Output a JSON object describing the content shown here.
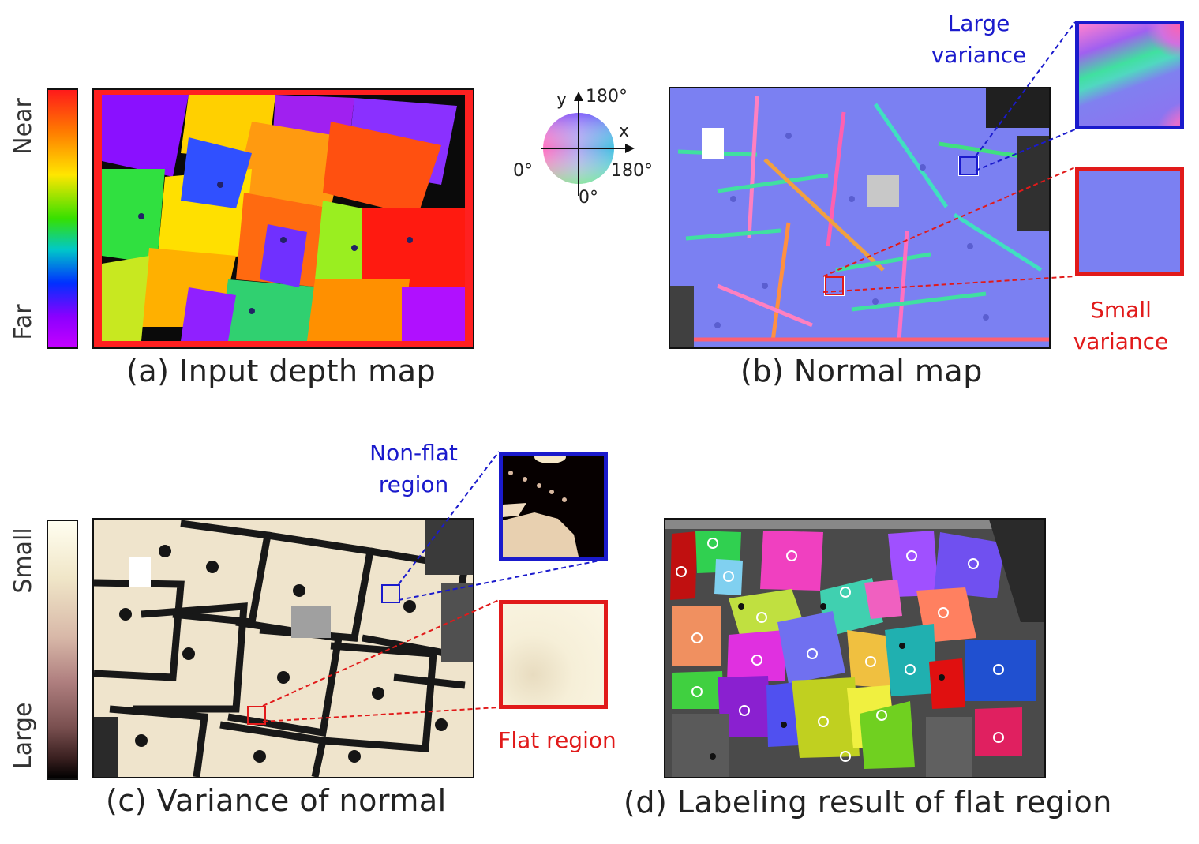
{
  "panels": {
    "a": {
      "caption": "(a) Input depth map",
      "colorbar_top": "Near",
      "colorbar_bottom": "Far"
    },
    "b": {
      "caption": "(b) Normal map",
      "axis_y": "y",
      "axis_x": "x",
      "angle_top": "180°",
      "angle_left": "0°",
      "angle_right": "180°",
      "angle_bottom": "0°",
      "zoom_high_label_1": "Large",
      "zoom_high_label_2": "variance",
      "zoom_low_label_1": "Small",
      "zoom_low_label_2": "variance",
      "color_high": "#1a1acc",
      "color_low": "#e11a1a"
    },
    "c": {
      "caption": "(c) Variance of normal",
      "colorbar_top": "Small",
      "colorbar_bottom": "Large",
      "zoom_high_label_1": "Non-flat",
      "zoom_high_label_2": "region",
      "zoom_low_label_1": "Flat region"
    },
    "d": {
      "caption": "(d) Labeling result of flat region"
    }
  }
}
